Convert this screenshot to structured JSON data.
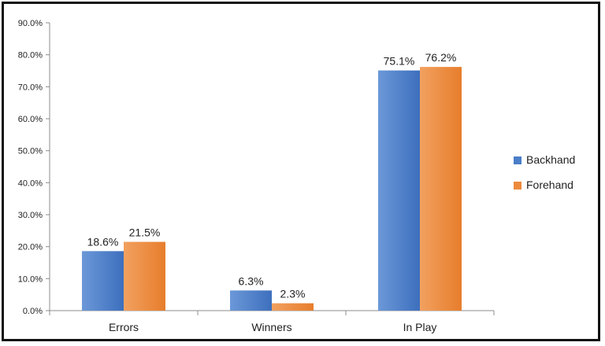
{
  "chart_data": {
    "type": "bar",
    "categories": [
      "Errors",
      "Winners",
      "In Play"
    ],
    "series": [
      {
        "name": "Backhand",
        "values": [
          18.6,
          6.3,
          75.1
        ],
        "labels": [
          "18.6%",
          "6.3%",
          "75.1%"
        ]
      },
      {
        "name": "Forehand",
        "values": [
          21.5,
          2.3,
          76.2
        ],
        "labels": [
          "21.5%",
          "2.3%",
          "76.2%"
        ]
      }
    ],
    "ylim": [
      0,
      90
    ],
    "yticks": [
      "0.0%",
      "10.0%",
      "20.0%",
      "30.0%",
      "40.0%",
      "50.0%",
      "60.0%",
      "70.0%",
      "80.0%",
      "90.0%"
    ],
    "grid": false,
    "legend": "right",
    "title": "",
    "xlabel": "",
    "ylabel": ""
  },
  "colors": {
    "Backhand": "#4a7ec9",
    "Forehand": "#ee8a3c",
    "axis": "#8c8c8c"
  }
}
